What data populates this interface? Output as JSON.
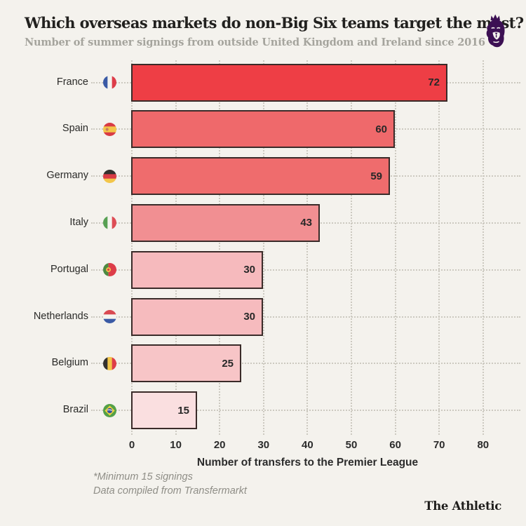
{
  "chart_data": {
    "type": "bar",
    "orientation": "horizontal",
    "title": "Which overseas markets do non-Big Six teams target the most?",
    "subtitle": "Number of summer signings from outside United Kingdom and Ireland since 2016",
    "xlabel": "Number of transfers to the Premier League",
    "xticks": [
      0,
      10,
      20,
      30,
      40,
      50,
      60,
      70,
      80
    ],
    "xlim": [
      0,
      80
    ],
    "grid": "vertical-dotted",
    "categories": [
      "France",
      "Spain",
      "Germany",
      "Italy",
      "Portugal",
      "Netherlands",
      "Belgium",
      "Brazil"
    ],
    "values": [
      72,
      60,
      59,
      43,
      30,
      30,
      25,
      15
    ],
    "bar_colors": [
      "#ee3e45",
      "#ef696b",
      "#ef6c6d",
      "#f18f92",
      "#f6babd",
      "#f6bbbe",
      "#f7c5c7",
      "#fadfe0"
    ],
    "bar_border_color": "#3a2b29",
    "flags": [
      {
        "icon": "flag-france-icon",
        "type": "vertical",
        "colors": [
          "#3a5aa5",
          "#f5f4ef",
          "#dd3d49"
        ]
      },
      {
        "icon": "flag-spain-icon",
        "type": "horizontal",
        "colors": [
          "#d93b45",
          "#f3c64a",
          "#d93b45"
        ],
        "ratios": [
          0.28,
          0.44,
          0.28
        ],
        "emblem": {
          "color": "#c97f5d",
          "x": 0.3,
          "y": 0.5,
          "r": 0.11
        }
      },
      {
        "icon": "flag-germany-icon",
        "type": "horizontal",
        "colors": [
          "#33312e",
          "#d93b45",
          "#f3c64a"
        ]
      },
      {
        "icon": "flag-italy-icon",
        "type": "vertical",
        "colors": [
          "#57a053",
          "#f5f4ef",
          "#dd4d55"
        ]
      },
      {
        "icon": "flag-portugal-icon",
        "type": "portugal",
        "colors": [
          "#4d8a40",
          "#dd3d49"
        ],
        "emblem": {
          "color": "#f3c64a"
        }
      },
      {
        "icon": "flag-netherlands-icon",
        "type": "horizontal",
        "colors": [
          "#d94a52",
          "#f5f4ef",
          "#3a5aa5"
        ]
      },
      {
        "icon": "flag-belgium-icon",
        "type": "vertical",
        "colors": [
          "#33312e",
          "#f3c64a",
          "#dd3d49"
        ]
      },
      {
        "icon": "flag-brazil-icon",
        "type": "brazil",
        "colors": [
          "#53a047",
          "#f0d43f",
          "#3a55a0"
        ]
      }
    ]
  },
  "footnotes": [
    "*Minimum 15 signings",
    "Data compiled from Transfermarkt"
  ],
  "branding": {
    "wordmark": "The Athletic",
    "logo": "premier-league-lion-icon",
    "logo_color": "#3c1053"
  },
  "theme": {
    "background": "#f4f2ed",
    "grid_dot_color": "#ccc9c0",
    "title_color": "#21201e",
    "subtitle_color": "#a5a49d",
    "footnote_color": "#8f8e87",
    "value_label_color": "#282828"
  }
}
